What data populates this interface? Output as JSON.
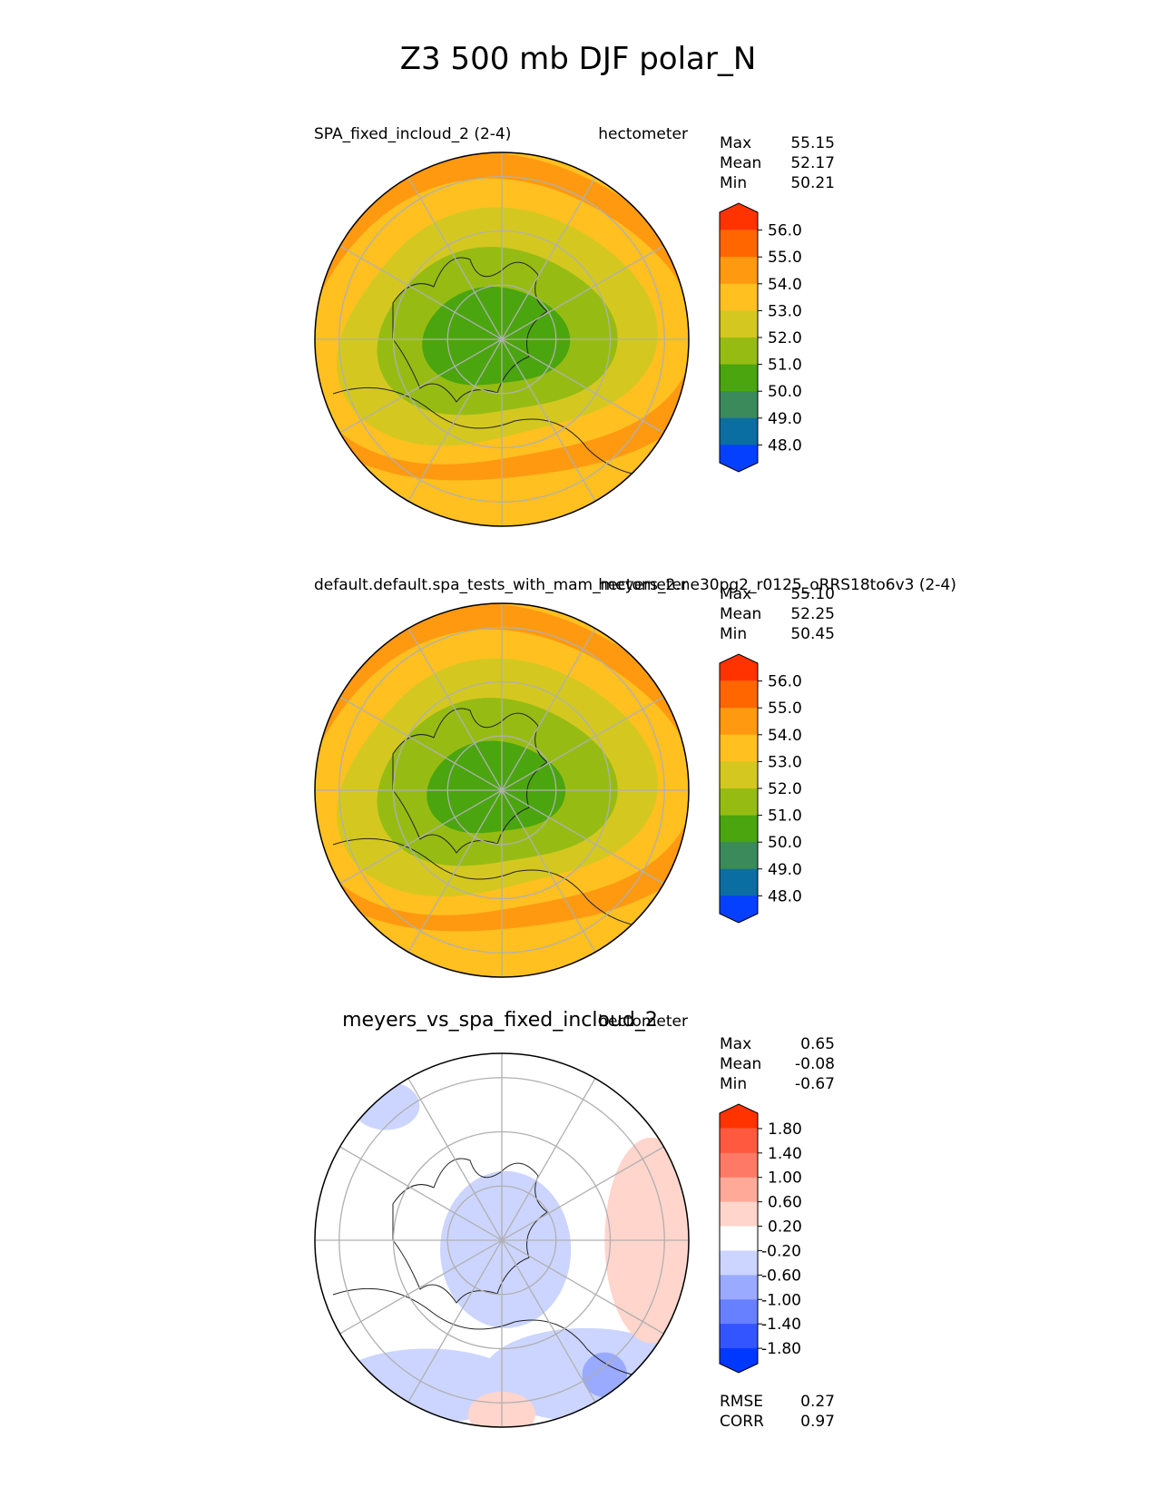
{
  "figure": {
    "title": "Z3 500 mb DJF polar_N"
  },
  "chart_data": [
    {
      "type": "polar-contour-map",
      "id": "test",
      "title": "SPA_fixed_incloud_2 (2-4)",
      "units": "hectometer",
      "stats": {
        "max_label": "Max",
        "max": "55.15",
        "mean_label": "Mean",
        "mean": "52.17",
        "min_label": "Min",
        "min": "50.21"
      },
      "levels": [
        "56.0",
        "55.0",
        "54.0",
        "53.0",
        "52.0",
        "51.0",
        "50.0",
        "49.0",
        "48.0"
      ],
      "colors": [
        "#ff3300",
        "#ff6600",
        "#ff9910",
        "#ffc020",
        "#d4c820",
        "#96bc14",
        "#4aa50e",
        "#3a8a5c",
        "#0a6ea2",
        "#0540ff"
      ],
      "contours": [
        {
          "value": 54.0,
          "color": "#ff9910",
          "r": 1.02,
          "wave": [
            0.05,
            0.05
          ]
        },
        {
          "value": 53.0,
          "color": "#ffc020",
          "r": 0.88,
          "wave": [
            0.06,
            0.06
          ]
        },
        {
          "value": 52.0,
          "color": "#d4c820",
          "r": 0.72,
          "wave": [
            0.08,
            0.07
          ]
        },
        {
          "value": 51.0,
          "color": "#96bc14",
          "r": 0.53,
          "wave": [
            0.08,
            0.06
          ]
        },
        {
          "value": 50.0,
          "color": "#4aa50e",
          "r": 0.32,
          "wave": [
            0.1,
            0.05
          ]
        }
      ]
    },
    {
      "type": "polar-contour-map",
      "id": "reference",
      "title": "default.default.spa_tests_with_mam_meyers_2.ne30pg2_r0125_oRRS18to6v3 (2-4)",
      "units": "hectometer",
      "stats": {
        "max_label": "Max",
        "max": "55.10",
        "mean_label": "Mean",
        "mean": "52.25",
        "min_label": "Min",
        "min": "50.45"
      },
      "levels": [
        "56.0",
        "55.0",
        "54.0",
        "53.0",
        "52.0",
        "51.0",
        "50.0",
        "49.0",
        "48.0"
      ],
      "colors": [
        "#ff3300",
        "#ff6600",
        "#ff9910",
        "#ffc020",
        "#d4c820",
        "#96bc14",
        "#4aa50e",
        "#3a8a5c",
        "#0a6ea2",
        "#0540ff"
      ],
      "contours": [
        {
          "value": 54.0,
          "color": "#ff9910",
          "r": 1.02,
          "wave": [
            0.05,
            0.05
          ]
        },
        {
          "value": 53.0,
          "color": "#ffc020",
          "r": 0.88,
          "wave": [
            0.06,
            0.06
          ]
        },
        {
          "value": 52.0,
          "color": "#d4c820",
          "r": 0.72,
          "wave": [
            0.08,
            0.07
          ]
        },
        {
          "value": 51.0,
          "color": "#96bc14",
          "r": 0.53,
          "wave": [
            0.08,
            0.06
          ]
        },
        {
          "value": 50.0,
          "color": "#4aa50e",
          "r": 0.3,
          "wave": [
            0.1,
            0.05
          ]
        }
      ]
    },
    {
      "type": "polar-contour-map",
      "id": "difference",
      "title": "meyers_vs_spa_fixed_incloud_2",
      "units": "hectometer",
      "stats": {
        "max_label": "Max",
        "max": "0.65",
        "mean_label": "Mean",
        "mean": "-0.08",
        "min_label": "Min",
        "min": "-0.67"
      },
      "levels": [
        "1.80",
        "1.40",
        "1.00",
        "0.60",
        "0.20",
        "-0.20",
        "-0.60",
        "-1.00",
        "-1.40",
        "-1.80"
      ],
      "colors": [
        "#ff3300",
        "#ff5a40",
        "#ff7a66",
        "#ffaa99",
        "#ffd5cc",
        "#ffffff",
        "#ccd5ff",
        "#99aaff",
        "#6680ff",
        "#3355ff",
        "#0038ff"
      ],
      "metrics": {
        "rmse_label": "RMSE",
        "rmse": "0.27",
        "corr_label": "CORR",
        "corr": "0.97"
      },
      "anomalies": [
        {
          "sign": "negative",
          "color": "#ccd5ff",
          "cx": 0.02,
          "cy": 0.05,
          "rx": 0.35,
          "ry": 0.42
        },
        {
          "sign": "negative",
          "color": "#ccd5ff",
          "cx": -0.4,
          "cy": 0.78,
          "rx": 0.5,
          "ry": 0.2
        },
        {
          "sign": "negative",
          "color": "#ccd5ff",
          "cx": 0.45,
          "cy": 0.72,
          "rx": 0.55,
          "ry": 0.25
        },
        {
          "sign": "negative",
          "color": "#99aaff",
          "cx": 0.55,
          "cy": 0.72,
          "rx": 0.12,
          "ry": 0.12
        },
        {
          "sign": "negative",
          "color": "#ccd5ff",
          "cx": -0.62,
          "cy": -0.72,
          "rx": 0.18,
          "ry": 0.13
        },
        {
          "sign": "positive",
          "color": "#ffd5cc",
          "cx": 0.8,
          "cy": 0.0,
          "rx": 0.25,
          "ry": 0.55
        },
        {
          "sign": "positive",
          "color": "#ffd5cc",
          "cx": 0.0,
          "cy": 0.93,
          "rx": 0.18,
          "ry": 0.12
        }
      ]
    }
  ]
}
